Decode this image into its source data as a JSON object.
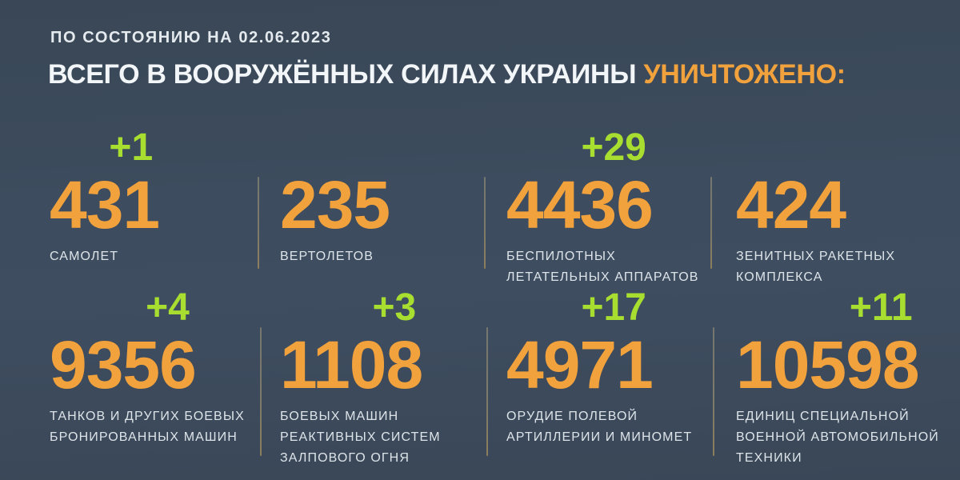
{
  "header": {
    "date_line": "ПО СОСТОЯНИЮ НА 02.06.2023",
    "title_main": "ВСЕГО В ВООРУЖЁННЫХ СИЛАХ УКРАИНЫ ",
    "title_accent": "УНИЧТОЖЕНО:"
  },
  "colors": {
    "background": "#3d4c5e",
    "value_orange": "#f2a23c",
    "increment_green": "#a7de30",
    "text_white": "#f3f6f8",
    "label_gray": "#dde4e9",
    "divider": "#8c7e5c"
  },
  "stats": [
    {
      "increment": "+1",
      "value": "431",
      "label": "САМОЛЕТ"
    },
    {
      "increment": "",
      "value": "235",
      "label": "ВЕРТОЛЕТОВ"
    },
    {
      "increment": "+29",
      "value": "4436",
      "label": "БЕСПИЛОТНЫХ\nЛЕТАТЕЛЬНЫХ АППАРАТОВ"
    },
    {
      "increment": "",
      "value": "424",
      "label": "ЗЕНИТНЫХ РАКЕТНЫХ\nКОМПЛЕКСА"
    },
    {
      "increment": "+4",
      "value": "9356",
      "label": "ТАНКОВ И ДРУГИХ БОЕВЫХ\nБРОНИРОВАННЫХ МАШИН"
    },
    {
      "increment": "+3",
      "value": "1108",
      "label": "БОЕВЫХ МАШИН\nРЕАКТИВНЫХ СИСТЕМ\nЗАЛПОВОГО ОГНЯ"
    },
    {
      "increment": "+17",
      "value": "4971",
      "label": "ОРУДИЕ ПОЛЕВОЙ\nАРТИЛЛЕРИИ И МИНОМЕТ"
    },
    {
      "increment": "+11",
      "value": "10598",
      "label": "ЕДИНИЦ СПЕЦИАЛЬНОЙ\nВОЕННОЙ АВТОМОБИЛЬНОЙ\nТЕХНИКИ"
    }
  ],
  "chart_data": {
    "type": "table",
    "title": "ВСЕГО В ВООРУЖЁННЫХ СИЛАХ УКРАИНЫ УНИЧТОЖЕНО:",
    "subtitle": "ПО СОСТОЯНИЮ НА 02.06.2023",
    "categories": [
      "самолет",
      "вертолетов",
      "беспилотных летательных аппаратов",
      "зенитных ракетных комплекса",
      "танков и других боевых бронированных машин",
      "боевых машин реактивных систем залпового огня",
      "орудие полевой артиллерии и миномет",
      "единиц специальной военной автомобильной техники"
    ],
    "values": [
      431,
      235,
      4436,
      424,
      9356,
      1108,
      4971,
      10598
    ],
    "daily_increase": [
      1,
      null,
      29,
      null,
      4,
      3,
      17,
      11
    ],
    "layout": "2 rows x 4 columns grid, green increments above orange totals, white labels below"
  }
}
